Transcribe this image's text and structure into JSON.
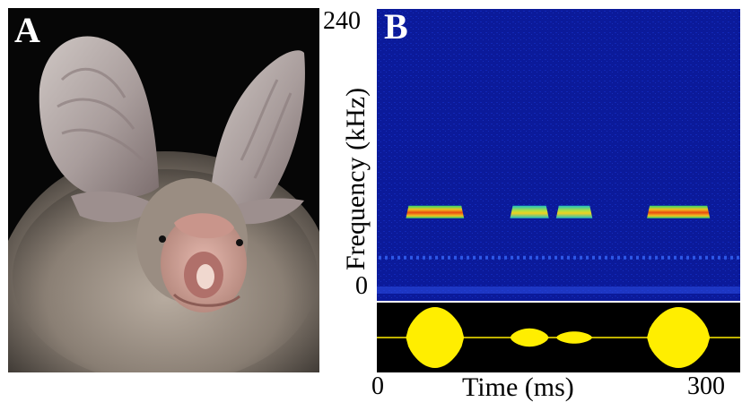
{
  "panels": {
    "a": {
      "letter": "A"
    },
    "b": {
      "letter": "B"
    }
  },
  "chart_data": {
    "type": "heatmap",
    "xlabel": "Time (ms)",
    "ylabel": "Frequency (kHz)",
    "x_ticks": [
      "0",
      "300"
    ],
    "y_ticks": [
      "0",
      "240"
    ],
    "xlim": [
      0,
      300
    ],
    "ylim": [
      0,
      240
    ],
    "calls": [
      {
        "start_ms": 24,
        "end_ms": 72,
        "freq_khz": 70,
        "relative_amplitude": 1.0
      },
      {
        "start_ms": 110,
        "end_ms": 142,
        "freq_khz": 70,
        "relative_amplitude": 0.3
      },
      {
        "start_ms": 148,
        "end_ms": 178,
        "freq_khz": 70,
        "relative_amplitude": 0.2
      },
      {
        "start_ms": 223,
        "end_ms": 275,
        "freq_khz": 70,
        "relative_amplitude": 1.0
      }
    ],
    "harmonic_band_khz": 30,
    "colors": {
      "background": "#0b1a9a",
      "call_core": "#e84a10",
      "call_edge": "#32d66a",
      "waveform": "#ffee00"
    }
  }
}
